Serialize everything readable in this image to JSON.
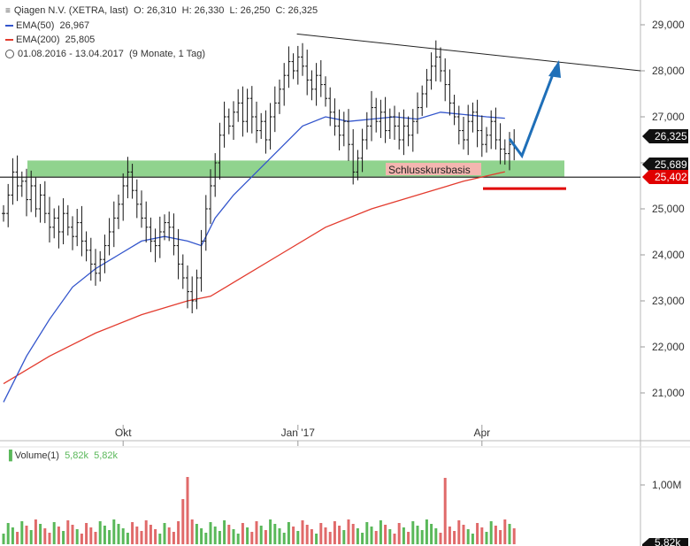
{
  "header": {
    "icon": "candlestick-icon",
    "instrument": "Qiagen N.V. (XETRA, last)",
    "open": "O: 26,310",
    "high": "H: 26,330",
    "low": "L: 26,250",
    "close": "C: 26,325",
    "ema50_label": "EMA(50)",
    "ema50_value": "26,967",
    "ema200_label": "EMA(200)",
    "ema200_value": "25,805",
    "range_icon": "clock-icon",
    "period": "01.08.2016 - 13.04.2017",
    "period_detail": "(9 Monate, 1 Tag)"
  },
  "volume_header": {
    "label": "Volume(1)",
    "v1": "5,82k",
    "v2": "5,82k"
  },
  "annotations": {
    "support_label": "Schlusskursbasis",
    "last_price_tag": "26,325",
    "support_tag": "25,689",
    "close_basis_tag": "25,402"
  },
  "colors": {
    "ema50": "#3355cc",
    "ema200": "#e33b2e",
    "support_zone": "#7ccb7a",
    "arrow": "#1f6fb8",
    "close_basis": "#e00000",
    "volume_up": "#5ab85a",
    "volume_down": "#e06a6a"
  },
  "chart_data": [
    {
      "type": "candlestick",
      "x_tick_labels": [
        "Okt",
        "Jan '17",
        "Apr"
      ],
      "y_tick_labels": [
        "21,000",
        "22,000",
        "23,000",
        "24,000",
        "25,000",
        "26,000",
        "27,000",
        "28,000",
        "29,000"
      ],
      "ylim": [
        20.4,
        29.4
      ],
      "grid": false,
      "closes": [
        24.9,
        25.3,
        25.8,
        25.5,
        25.6,
        25.2,
        25.5,
        25.0,
        25.3,
        24.9,
        24.6,
        24.8,
        24.5,
        24.9,
        24.6,
        24.4,
        24.7,
        24.3,
        24.1,
        23.8,
        23.6,
        23.9,
        24.2,
        24.5,
        24.8,
        25.1,
        25.5,
        25.8,
        25.4,
        25.1,
        24.8,
        24.6,
        24.3,
        24.2,
        24.5,
        24.7,
        24.6,
        24.2,
        23.8,
        23.5,
        23.2,
        23.0,
        23.5,
        24.3,
        25.0,
        25.5,
        26.0,
        26.6,
        27.0,
        26.8,
        27.1,
        27.3,
        26.9,
        27.4,
        27.0,
        26.7,
        26.9,
        26.5,
        27.0,
        27.3,
        27.6,
        27.9,
        28.2,
        28.0,
        28.3,
        28.1,
        27.8,
        27.6,
        27.9,
        27.7,
        27.4,
        27.1,
        26.8,
        26.6,
        26.9,
        26.4,
        25.8,
        26.1,
        26.5,
        26.8,
        27.2,
        26.9,
        27.1,
        26.7,
        27.0,
        26.8,
        26.5,
        26.8,
        26.6,
        26.9,
        27.2,
        27.5,
        27.8,
        28.1,
        28.3,
        28.0,
        27.7,
        27.3,
        27.0,
        26.7,
        26.5,
        26.9,
        27.1,
        26.7,
        26.4,
        26.6,
        26.9,
        26.5,
        26.3,
        26.2,
        26.4,
        26.325
      ],
      "ema50": [
        {
          "x": 0,
          "y": 20.8
        },
        {
          "x": 5,
          "y": 21.8
        },
        {
          "x": 10,
          "y": 22.6
        },
        {
          "x": 15,
          "y": 23.3
        },
        {
          "x": 20,
          "y": 23.7
        },
        {
          "x": 25,
          "y": 24.0
        },
        {
          "x": 30,
          "y": 24.3
        },
        {
          "x": 35,
          "y": 24.4
        },
        {
          "x": 40,
          "y": 24.3
        },
        {
          "x": 43,
          "y": 24.2
        },
        {
          "x": 46,
          "y": 24.8
        },
        {
          "x": 50,
          "y": 25.3
        },
        {
          "x": 55,
          "y": 25.8
        },
        {
          "x": 60,
          "y": 26.3
        },
        {
          "x": 65,
          "y": 26.8
        },
        {
          "x": 70,
          "y": 27.0
        },
        {
          "x": 75,
          "y": 26.9
        },
        {
          "x": 80,
          "y": 26.95
        },
        {
          "x": 85,
          "y": 27.0
        },
        {
          "x": 90,
          "y": 26.95
        },
        {
          "x": 95,
          "y": 27.1
        },
        {
          "x": 100,
          "y": 27.05
        },
        {
          "x": 105,
          "y": 27.0
        },
        {
          "x": 109,
          "y": 26.97
        }
      ],
      "ema200": [
        {
          "x": 0,
          "y": 21.2
        },
        {
          "x": 10,
          "y": 21.8
        },
        {
          "x": 20,
          "y": 22.3
        },
        {
          "x": 30,
          "y": 22.7
        },
        {
          "x": 40,
          "y": 23.0
        },
        {
          "x": 45,
          "y": 23.1
        },
        {
          "x": 50,
          "y": 23.4
        },
        {
          "x": 60,
          "y": 24.0
        },
        {
          "x": 70,
          "y": 24.6
        },
        {
          "x": 80,
          "y": 25.0
        },
        {
          "x": 90,
          "y": 25.3
        },
        {
          "x": 100,
          "y": 25.6
        },
        {
          "x": 109,
          "y": 25.805
        }
      ],
      "resistance_line": [
        {
          "x": 63,
          "y": 28.8
        },
        {
          "x": 139,
          "y": 28.0
        }
      ],
      "support_zone": {
        "low": 25.7,
        "high": 26.05
      },
      "support_level": 25.689,
      "close_basis_level": 25.402
    },
    {
      "type": "bar",
      "title": "Volume(1)",
      "y_tick_labels": [
        "1,00M"
      ],
      "last_value_label": "5,82k"
    }
  ]
}
